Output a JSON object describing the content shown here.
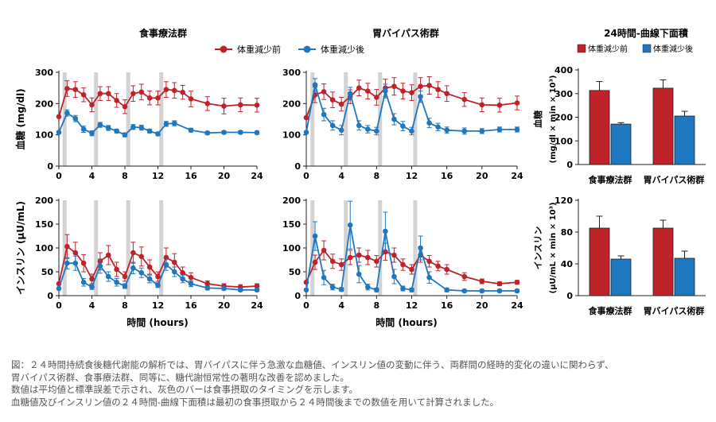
{
  "titles": {
    "diet": "食事療法群",
    "bypass": "胃バイパス術群",
    "auc": "24時間-曲線下面積"
  },
  "legend": {
    "before": "体重減少前",
    "after": "体重減少後"
  },
  "colors": {
    "before": "#c0222a",
    "after": "#1f77bf",
    "meal_bar": "#d3d3d3"
  },
  "axis_labels": {
    "glucose": "血糖 (mg/dl)",
    "insulin": "インスリン (μU/mL)",
    "time": "時間 (hours)",
    "auc_glucose": "血糖",
    "auc_glucose_unit": "(mg/dl × min × 10³)",
    "auc_insulin": "インスリン",
    "auc_insulin_unit": "(μU/mL × min × 10³)"
  },
  "chart_data": [
    {
      "id": "glucose_diet",
      "type": "line",
      "title": "食事療法群",
      "xlabel": "時間 (hours)",
      "ylabel": "血糖 (mg/dl)",
      "xlim": [
        0,
        24
      ],
      "ylim": [
        0,
        300
      ],
      "xticks": [
        0,
        4,
        8,
        12,
        16,
        20,
        24
      ],
      "yticks": [
        0,
        100,
        200,
        300
      ],
      "meal_times": [
        0.7,
        4.5,
        8.4,
        12.4
      ],
      "series": [
        {
          "name": "体重減少前",
          "x": [
            0,
            1,
            2,
            3,
            4,
            5,
            6,
            7,
            8,
            9,
            10,
            11,
            12,
            13,
            14,
            15,
            16,
            18,
            20,
            22,
            24
          ],
          "y": [
            158,
            248,
            245,
            228,
            196,
            232,
            232,
            210,
            190,
            232,
            237,
            218,
            218,
            245,
            242,
            236,
            215,
            200,
            192,
            196,
            195
          ],
          "err": [
            0,
            25,
            25,
            22,
            22,
            22,
            22,
            22,
            22,
            25,
            25,
            22,
            22,
            25,
            25,
            22,
            25,
            22,
            25,
            22,
            22
          ]
        },
        {
          "name": "体重減少後",
          "x": [
            0,
            1,
            2,
            3,
            4,
            5,
            6,
            7,
            8,
            9,
            10,
            11,
            12,
            13,
            14,
            16,
            18,
            20,
            22,
            24
          ],
          "y": [
            108,
            170,
            152,
            118,
            105,
            132,
            122,
            112,
            100,
            125,
            123,
            112,
            103,
            135,
            137,
            115,
            106,
            108,
            108,
            107
          ],
          "err": [
            0,
            10,
            10,
            10,
            8,
            8,
            8,
            6,
            6,
            8,
            8,
            6,
            6,
            8,
            8,
            6,
            5,
            5,
            5,
            5
          ]
        }
      ]
    },
    {
      "id": "glucose_bypass",
      "type": "line",
      "title": "胃バイパス術群",
      "xlabel": "時間 (hours)",
      "ylabel": "血糖 (mg/dl)",
      "xlim": [
        0,
        24
      ],
      "ylim": [
        0,
        300
      ],
      "xticks": [
        0,
        4,
        8,
        12,
        16,
        20,
        24
      ],
      "yticks": [
        0,
        100,
        200,
        300
      ],
      "meal_times": [
        0.7,
        4.5,
        8.4,
        12.4
      ],
      "series": [
        {
          "name": "体重減少前",
          "x": [
            0,
            1,
            2,
            3,
            4,
            5,
            6,
            7,
            8,
            9,
            10,
            11,
            12,
            13,
            14,
            15,
            16,
            18,
            20,
            22,
            24
          ],
          "y": [
            155,
            228,
            238,
            212,
            198,
            222,
            250,
            240,
            220,
            250,
            255,
            240,
            235,
            255,
            258,
            245,
            232,
            213,
            196,
            195,
            202
          ],
          "err": [
            0,
            25,
            25,
            25,
            22,
            22,
            25,
            25,
            25,
            28,
            28,
            25,
            25,
            28,
            28,
            25,
            25,
            22,
            22,
            22,
            22
          ]
        },
        {
          "name": "体重減少後",
          "x": [
            0,
            1,
            2,
            3,
            4,
            5,
            6,
            7,
            8,
            9,
            10,
            11,
            12,
            13,
            14,
            15,
            16,
            18,
            20,
            22,
            24
          ],
          "y": [
            108,
            260,
            165,
            130,
            115,
            232,
            130,
            118,
            112,
            240,
            150,
            128,
            112,
            222,
            138,
            125,
            115,
            112,
            112,
            117,
            117
          ],
          "err": [
            0,
            20,
            20,
            15,
            15,
            20,
            15,
            12,
            12,
            22,
            18,
            15,
            12,
            18,
            15,
            12,
            10,
            10,
            8,
            8,
            8
          ]
        }
      ]
    },
    {
      "id": "insulin_diet",
      "type": "line",
      "title": "",
      "xlabel": "時間 (hours)",
      "ylabel": "インスリン (μU/mL)",
      "xlim": [
        0,
        24
      ],
      "ylim": [
        0,
        200
      ],
      "xticks": [
        0,
        4,
        8,
        12,
        16,
        20,
        24
      ],
      "yticks": [
        0,
        50,
        100,
        150,
        200
      ],
      "meal_times": [
        0.7,
        4.5,
        8.4,
        12.4
      ],
      "series": [
        {
          "name": "体重減少前",
          "x": [
            0,
            1,
            2,
            3,
            4,
            5,
            6,
            7,
            8,
            9,
            10,
            11,
            12,
            13,
            14,
            15,
            16,
            18,
            20,
            22,
            24
          ],
          "y": [
            25,
            103,
            90,
            68,
            35,
            72,
            85,
            55,
            40,
            90,
            82,
            60,
            40,
            80,
            70,
            48,
            38,
            25,
            20,
            18,
            20
          ],
          "err": [
            0,
            25,
            22,
            18,
            10,
            18,
            20,
            15,
            10,
            22,
            20,
            15,
            10,
            20,
            18,
            12,
            10,
            6,
            5,
            5,
            5
          ]
        },
        {
          "name": "体重減少後",
          "x": [
            0,
            1,
            2,
            3,
            4,
            5,
            6,
            7,
            8,
            9,
            10,
            11,
            12,
            13,
            14,
            15,
            16,
            18,
            20,
            22,
            24
          ],
          "y": [
            15,
            68,
            68,
            28,
            18,
            62,
            40,
            28,
            20,
            58,
            48,
            35,
            22,
            65,
            50,
            35,
            25,
            16,
            15,
            12,
            12
          ],
          "err": [
            0,
            12,
            15,
            8,
            5,
            15,
            10,
            8,
            5,
            12,
            10,
            8,
            5,
            12,
            10,
            8,
            6,
            4,
            3,
            3,
            3
          ]
        }
      ]
    },
    {
      "id": "insulin_bypass",
      "type": "line",
      "title": "",
      "xlabel": "時間 (hours)",
      "ylabel": "インスリン (μU/mL)",
      "xlim": [
        0,
        24
      ],
      "ylim": [
        0,
        200
      ],
      "xticks": [
        0,
        4,
        8,
        12,
        16,
        20,
        24
      ],
      "yticks": [
        0,
        50,
        100,
        150,
        200
      ],
      "meal_times": [
        0.7,
        4.5,
        8.4,
        12.4
      ],
      "series": [
        {
          "name": "体重減少前",
          "x": [
            0,
            1,
            2,
            3,
            4,
            5,
            6,
            7,
            8,
            9,
            10,
            11,
            12,
            13,
            14,
            15,
            16,
            18,
            20,
            22,
            24
          ],
          "y": [
            28,
            70,
            95,
            72,
            65,
            80,
            85,
            80,
            72,
            92,
            85,
            65,
            55,
            85,
            72,
            62,
            55,
            40,
            30,
            25,
            28
          ],
          "err": [
            0,
            15,
            20,
            15,
            12,
            15,
            15,
            15,
            12,
            18,
            15,
            12,
            10,
            15,
            12,
            10,
            10,
            8,
            5,
            4,
            4
          ]
        },
        {
          "name": "体重減少後",
          "x": [
            0,
            1,
            2,
            3,
            4,
            5,
            6,
            7,
            8,
            9,
            10,
            11,
            12,
            13,
            14,
            16,
            18,
            20,
            22,
            24
          ],
          "y": [
            12,
            125,
            38,
            18,
            13,
            148,
            45,
            18,
            12,
            135,
            40,
            15,
            12,
            100,
            38,
            12,
            10,
            10,
            10,
            10
          ],
          "err": [
            0,
            30,
            15,
            6,
            4,
            50,
            18,
            6,
            4,
            40,
            15,
            5,
            4,
            25,
            12,
            4,
            3,
            3,
            3,
            3
          ]
        }
      ]
    },
    {
      "id": "auc_glucose",
      "type": "bar",
      "title": "24時間-曲線下面積",
      "ylabel": "血糖 (mg/dl × min × 10³)",
      "categories": [
        "食事療法群",
        "胃バイパス術群"
      ],
      "ylim": [
        0,
        400
      ],
      "yticks": [
        0,
        100,
        200,
        300,
        400
      ],
      "series": [
        {
          "name": "体重減少前",
          "values": [
            313,
            323
          ],
          "err": [
            38,
            35
          ]
        },
        {
          "name": "体重減少後",
          "values": [
            171,
            205
          ],
          "err": [
            6,
            20
          ]
        }
      ]
    },
    {
      "id": "auc_insulin",
      "type": "bar",
      "title": "",
      "ylabel": "インスリン (μU/mL × min × 10³)",
      "categories": [
        "食事療法群",
        "胃バイパス術群"
      ],
      "ylim": [
        0,
        120
      ],
      "yticks": [
        0,
        40,
        80,
        120
      ],
      "series": [
        {
          "name": "体重減少前",
          "values": [
            85,
            85
          ],
          "err": [
            15,
            10
          ]
        },
        {
          "name": "体重減少後",
          "values": [
            46,
            47
          ],
          "err": [
            4,
            9
          ]
        }
      ]
    }
  ],
  "caption": [
    "図：２４時間持続食後糖代謝能の解析では、胃バイパスに伴う急激な血糖値、インスリン値の変動に伴う、両群間の経時的変化の違いに関わらず、",
    "胃バイパス術群、食事療法群、同等に、糖代謝恒常性の著明な改善を認めました。",
    "数値は平均値と標準誤差で示され、灰色のバーは食事摂取のタイミングを示します。",
    "血糖値及びインスリン値の２４時間-曲線下面積は最初の食事摂取から２４時間後までの数値を用いて計算されました。"
  ]
}
